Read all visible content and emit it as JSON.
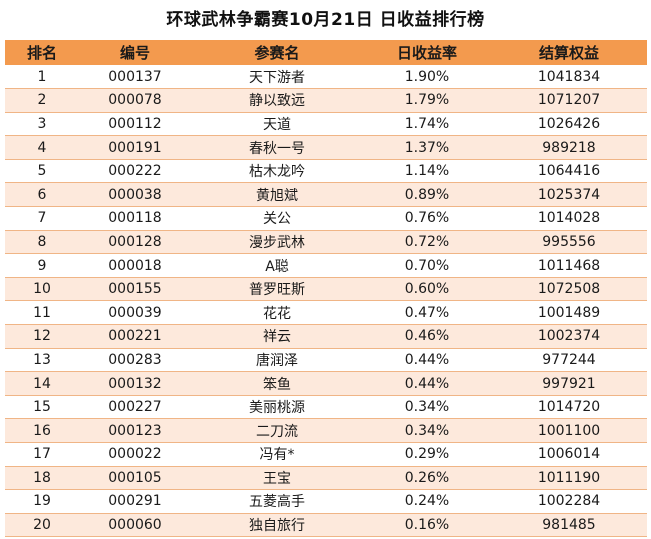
{
  "title": "环球武林争霸赛10月21日 日收益排行榜",
  "colors": {
    "header_bg": "#f39a4e",
    "stripe_bg": "#fde9dc",
    "row_border": "#f0b586"
  },
  "headers": [
    "排名",
    "编号",
    "参赛名",
    "日收益率",
    "结算权益"
  ],
  "rows": [
    [
      "1",
      "000137",
      "天下游者",
      "1.90%",
      "1041834"
    ],
    [
      "2",
      "000078",
      "静以致远",
      "1.79%",
      "1071207"
    ],
    [
      "3",
      "000112",
      "天道",
      "1.74%",
      "1026426"
    ],
    [
      "4",
      "000191",
      "春秋一号",
      "1.37%",
      "989218"
    ],
    [
      "5",
      "000222",
      "枯木龙吟",
      "1.14%",
      "1064416"
    ],
    [
      "6",
      "000038",
      "黄旭斌",
      "0.89%",
      "1025374"
    ],
    [
      "7",
      "000118",
      "关公",
      "0.76%",
      "1014028"
    ],
    [
      "8",
      "000128",
      "漫步武林",
      "0.72%",
      "995556"
    ],
    [
      "9",
      "000018",
      "A聪",
      "0.70%",
      "1011468"
    ],
    [
      "10",
      "000155",
      "普罗旺斯",
      "0.60%",
      "1072508"
    ],
    [
      "11",
      "000039",
      "花花",
      "0.47%",
      "1001489"
    ],
    [
      "12",
      "000221",
      "祥云",
      "0.46%",
      "1002374"
    ],
    [
      "13",
      "000283",
      "唐润泽",
      "0.44%",
      "977244"
    ],
    [
      "14",
      "000132",
      "笨鱼",
      "0.44%",
      "997921"
    ],
    [
      "15",
      "000227",
      "美丽桃源",
      "0.34%",
      "1014720"
    ],
    [
      "16",
      "000123",
      "二刀流",
      "0.34%",
      "1001100"
    ],
    [
      "17",
      "000022",
      "冯有*",
      "0.29%",
      "1006014"
    ],
    [
      "18",
      "000105",
      "王宝",
      "0.26%",
      "1011190"
    ],
    [
      "19",
      "000291",
      "五菱高手",
      "0.24%",
      "1002284"
    ],
    [
      "20",
      "000060",
      "独自旅行",
      "0.16%",
      "981485"
    ]
  ]
}
